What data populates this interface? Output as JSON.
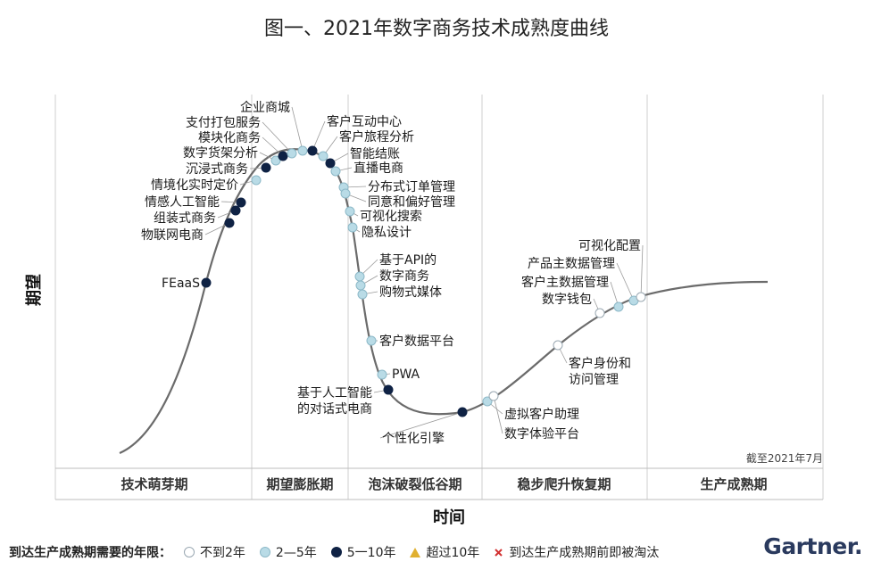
{
  "title": "图一、2021年数字商务技术成熟度曲线",
  "gartner_logo": "Gartner",
  "chart_data": {
    "type": "scatter",
    "curve": "hype-cycle",
    "ylabel": "期望",
    "xlabel": "时间",
    "date_note": "截至2021年7月",
    "phases": [
      "技术萌芽期",
      "期望膨胀期",
      "泡沫破裂低谷期",
      "稳步爬升恢复期",
      "生产成熟期"
    ],
    "legend_label": "到达生产成熟期需要的年限：",
    "legend": [
      {
        "key": "lt2",
        "label": "不到2年",
        "color": "#ffffff",
        "stroke": "#9aa8b2",
        "shape": "circle"
      },
      {
        "key": "y2to5",
        "label": "2—5年",
        "color": "#b9dbe6",
        "stroke": "#8db9c8",
        "shape": "circle"
      },
      {
        "key": "y5to10",
        "label": "5一10年",
        "color": "#0f2244",
        "stroke": "#0f2244",
        "shape": "circle"
      },
      {
        "key": "gt10",
        "label": "超过10年",
        "color": "#e0b030",
        "stroke": "#e0b030",
        "shape": "triangle"
      },
      {
        "key": "obsolete",
        "label": "到达生产成熟期前即被淘汰",
        "color": "#d23030",
        "stroke": "#d23030",
        "shape": "x"
      }
    ],
    "points": [
      {
        "label": "FEaaS",
        "cat": "y5to10"
      },
      {
        "label": "物联网电商",
        "cat": "y5to10"
      },
      {
        "label": "组装式商务",
        "cat": "y5to10"
      },
      {
        "label": "情感人工智能",
        "cat": "y5to10"
      },
      {
        "label": "情境化实时定价",
        "cat": "y2to5"
      },
      {
        "label": "沉浸式商务",
        "cat": "y5to10"
      },
      {
        "label": "数字货架分析",
        "cat": "y2to5"
      },
      {
        "label": "模块化商务",
        "cat": "y5to10"
      },
      {
        "label": "支付打包服务",
        "cat": "y2to5"
      },
      {
        "label": "企业商城",
        "cat": "y2to5"
      },
      {
        "label": "客户互动中心",
        "cat": "y5to10"
      },
      {
        "label": "客户旅程分析",
        "cat": "y2to5"
      },
      {
        "label": "智能结账",
        "cat": "y5to10"
      },
      {
        "label": "直播电商",
        "cat": "y2to5"
      },
      {
        "label": "分布式订单管理",
        "cat": "y2to5"
      },
      {
        "label": "同意和偏好管理",
        "cat": "y2to5"
      },
      {
        "label": "可视化搜索",
        "cat": "y2to5"
      },
      {
        "label": "隐私设计",
        "cat": "y2to5"
      },
      {
        "label": "基于API的",
        "cat": "y2to5"
      },
      {
        "label": "数字商务",
        "cat": "y2to5"
      },
      {
        "label": "购物式媒体",
        "cat": "y2to5"
      },
      {
        "label": "客户数据平台",
        "cat": "y2to5"
      },
      {
        "label": "PWA",
        "cat": "y2to5"
      },
      {
        "label": "基于人工智能的对话式电商",
        "cat": "y5to10"
      },
      {
        "label": "个性化引擎",
        "cat": "y5to10"
      },
      {
        "label": "虚拟客户助理",
        "cat": "y2to5"
      },
      {
        "label": "数字体验平台",
        "cat": "lt2"
      },
      {
        "label": "客户身份和访问管理",
        "cat": "lt2"
      },
      {
        "label": "数字钱包",
        "cat": "lt2"
      },
      {
        "label": "客户主数据管理",
        "cat": "y2to5"
      },
      {
        "label": "产品主数据管理",
        "cat": "y2to5"
      },
      {
        "label": "可视化配置",
        "cat": "lt2"
      }
    ]
  }
}
